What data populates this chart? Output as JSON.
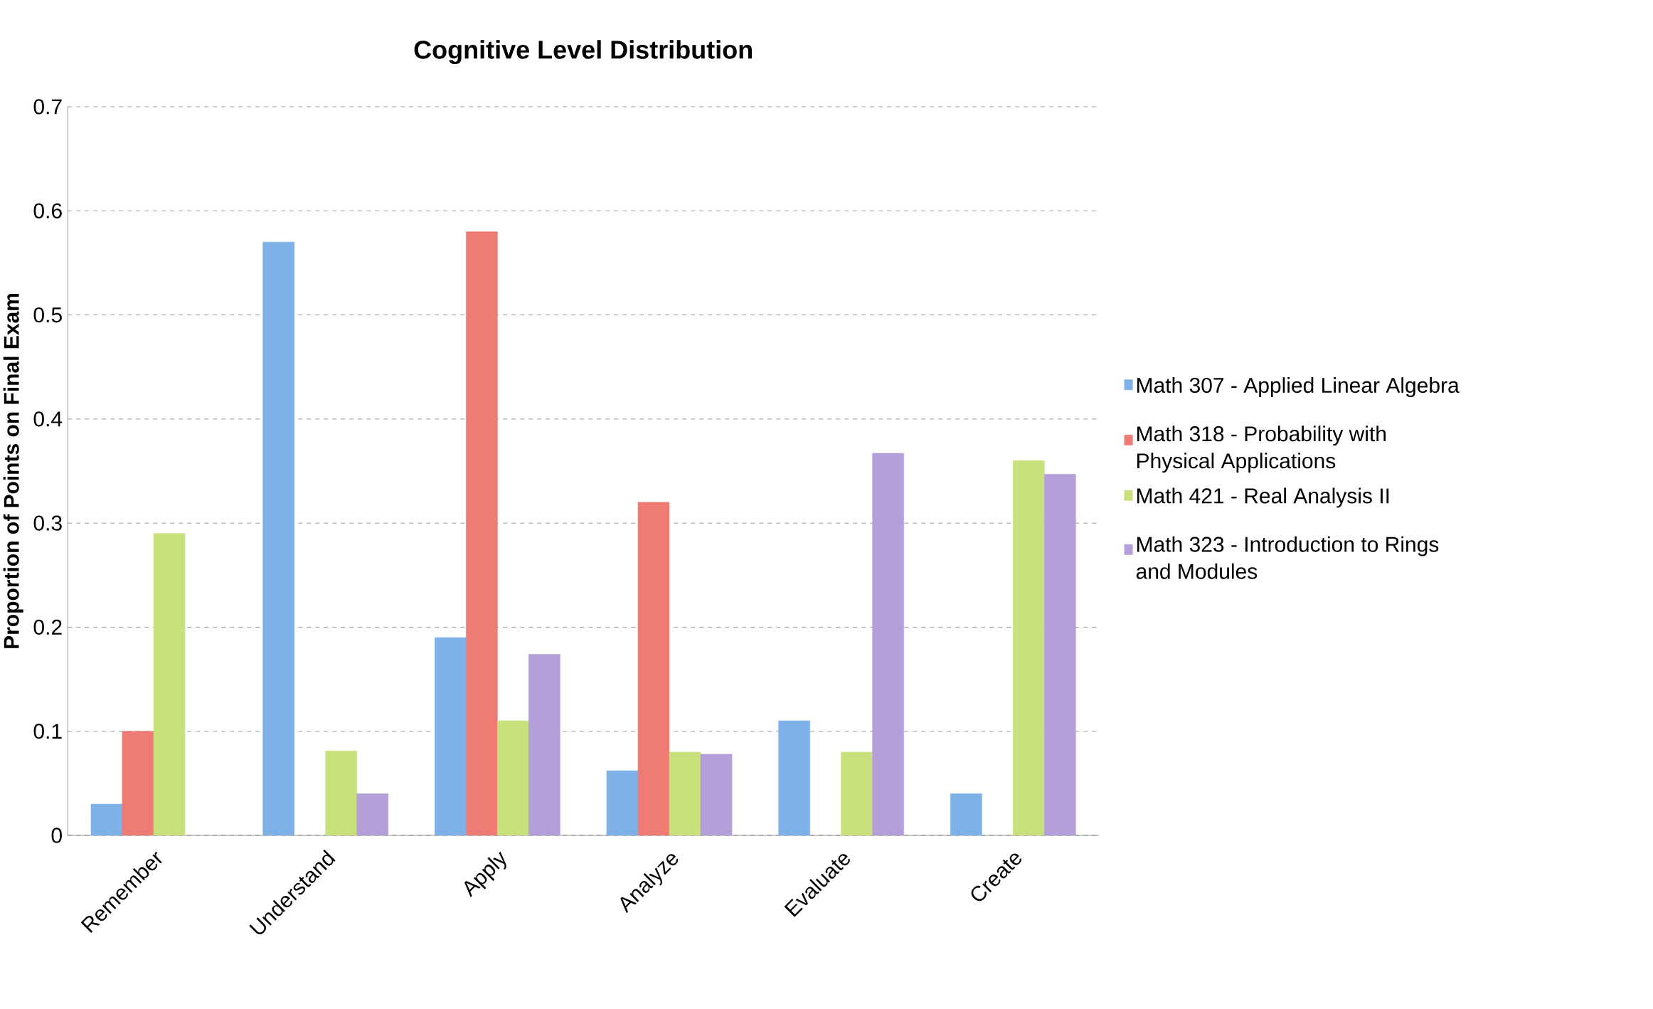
{
  "chart_data": {
    "type": "bar",
    "title": "Cognitive Level Distribution",
    "ylabel": "Proportion of Points on Final Exam",
    "categories": [
      "Remember",
      "Understand",
      "Apply",
      "Analyze",
      "Evaluate",
      "Create"
    ],
    "series": [
      {
        "name": "Math 307 - Applied Linear Algebra",
        "color": "#7db1e8",
        "values": [
          0.03,
          0.57,
          0.19,
          0.062,
          0.11,
          0.04
        ]
      },
      {
        "name": "Math 318 - Probability with Physical Applications",
        "color": "#ee7c74",
        "values": [
          0.1,
          null,
          0.58,
          0.32,
          null,
          null
        ]
      },
      {
        "name": "Math 421 - Real Analysis II",
        "color": "#c8e17c",
        "values": [
          0.29,
          0.081,
          0.11,
          0.08,
          0.08,
          0.36
        ]
      },
      {
        "name": "Math 323 - Introduction to Rings and Modules",
        "color": "#b49fd8",
        "values": [
          null,
          0.04,
          0.174,
          0.078,
          0.367,
          0.347
        ]
      }
    ],
    "ylim": [
      0,
      0.7
    ],
    "yticks": [
      0,
      0.1,
      0.2,
      0.3,
      0.4,
      0.5,
      0.6,
      0.7
    ],
    "grid": "y",
    "legend": "right"
  }
}
